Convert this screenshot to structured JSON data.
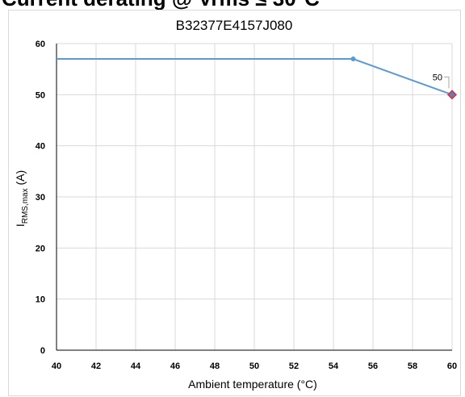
{
  "page": {
    "heading": "Current derating @ Vrms ≤ 30°C"
  },
  "chart_data": {
    "type": "line",
    "title": "B32377E4157J080",
    "xlabel": "Ambient temperature (°C)",
    "ylabel_main": "I",
    "ylabel_sub": "RMS,max",
    "ylabel_unit": " (A)",
    "x_ticks": [
      "40",
      "42",
      "44",
      "46",
      "48",
      "50",
      "52",
      "54",
      "56",
      "58",
      "60"
    ],
    "y_ticks": [
      "0",
      "10",
      "20",
      "30",
      "40",
      "50",
      "60"
    ],
    "xlim": [
      40,
      60
    ],
    "ylim": [
      0,
      60
    ],
    "grid": true,
    "series": [
      {
        "points": [
          [
            40,
            57
          ],
          [
            55,
            57
          ],
          [
            60,
            50
          ]
        ],
        "color": "#5b9bd5"
      }
    ],
    "highlight": {
      "x": 60,
      "y": 50,
      "label": "50",
      "fill": "#5b7fc0",
      "stroke": "#e03030"
    }
  }
}
